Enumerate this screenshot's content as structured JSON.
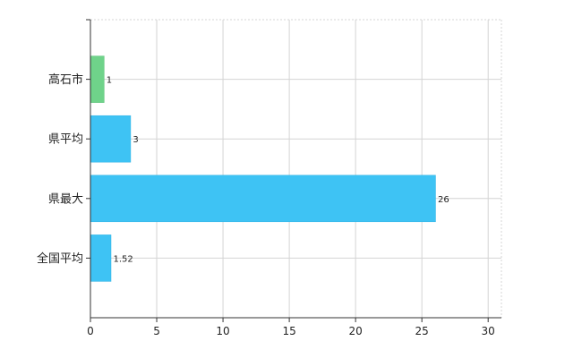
{
  "chart_data": {
    "type": "bar",
    "orientation": "horizontal",
    "categories": [
      "高石市",
      "県平均",
      "県最大",
      "全国平均"
    ],
    "values": [
      1,
      3,
      26,
      1.52
    ],
    "data_labels": [
      "1",
      "3",
      "26",
      "1.52"
    ],
    "x_ticks": [
      "0",
      "5",
      "10",
      "15",
      "20",
      "25",
      "30"
    ],
    "xlim": [
      0,
      31
    ],
    "title": "",
    "xlabel": "",
    "ylabel": "",
    "grid": true,
    "legend": "none",
    "colors": {
      "highlight": "#6fd38a",
      "highlight_border": "#5bbf76",
      "default": "#3ec3f4",
      "default_border": "#2fb2e4",
      "grid": "#d4d4d4",
      "axis": "#333333"
    },
    "highlight_category": "高石市"
  }
}
